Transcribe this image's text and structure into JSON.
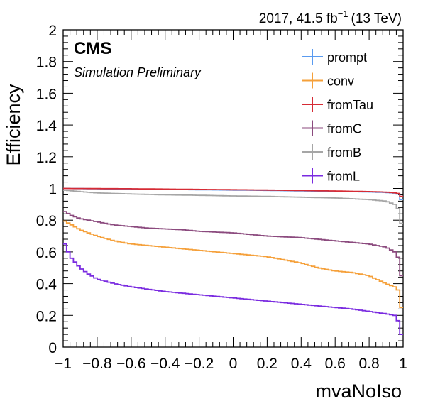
{
  "chart_data": {
    "type": "line",
    "header": {
      "experiment": "CMS",
      "subtitle": "Simulation Preliminary",
      "lumi_year": "2017, 41.5 fb",
      "lumi_exp": "−1",
      "lumi_energy": "(13 TeV)"
    },
    "xlabel": "mvaNoIso",
    "ylabel": "Efficiency",
    "xlim": [
      -1,
      1
    ],
    "ylim": [
      0,
      2
    ],
    "x_ticks": [
      "−1",
      "−0.8",
      "−0.6",
      "−0.4",
      "−0.2",
      "0",
      "0.2",
      "0.4",
      "0.6",
      "0.8",
      "1"
    ],
    "y_ticks": [
      "0",
      "0.2",
      "0.4",
      "0.6",
      "0.8",
      "1",
      "1.2",
      "1.4",
      "1.6",
      "1.8",
      "2"
    ],
    "legend_position": "top-right",
    "series": [
      {
        "name": "prompt",
        "color": "#5a9bf0",
        "x": [
          -1.0,
          -0.8,
          -0.6,
          -0.4,
          -0.2,
          0.0,
          0.2,
          0.4,
          0.6,
          0.8,
          0.9,
          0.96,
          0.98,
          0.99,
          1.0
        ],
        "y": [
          1.0,
          0.998,
          0.996,
          0.994,
          0.992,
          0.99,
          0.988,
          0.985,
          0.982,
          0.978,
          0.975,
          0.97,
          0.96,
          0.93,
          0.85
        ]
      },
      {
        "name": "conv",
        "color": "#f5a03a",
        "x": [
          -1.0,
          -0.95,
          -0.9,
          -0.8,
          -0.7,
          -0.6,
          -0.5,
          -0.4,
          -0.3,
          -0.2,
          -0.1,
          0.0,
          0.1,
          0.2,
          0.3,
          0.4,
          0.5,
          0.6,
          0.7,
          0.8,
          0.9,
          0.95,
          0.98,
          0.99,
          1.0
        ],
        "y": [
          0.8,
          0.77,
          0.74,
          0.7,
          0.67,
          0.65,
          0.64,
          0.63,
          0.62,
          0.61,
          0.6,
          0.59,
          0.58,
          0.57,
          0.55,
          0.53,
          0.5,
          0.48,
          0.47,
          0.45,
          0.4,
          0.38,
          0.35,
          0.25,
          0.18
        ]
      },
      {
        "name": "fromTau",
        "color": "#d62b35",
        "x": [
          -1.0,
          -0.8,
          -0.6,
          -0.4,
          -0.2,
          0.0,
          0.2,
          0.4,
          0.6,
          0.8,
          0.9,
          0.96,
          0.98,
          0.99,
          1.0
        ],
        "y": [
          1.0,
          0.999,
          0.998,
          0.996,
          0.994,
          0.992,
          0.99,
          0.987,
          0.984,
          0.98,
          0.977,
          0.972,
          0.965,
          0.95,
          0.9
        ]
      },
      {
        "name": "fromC",
        "color": "#8b4a7e",
        "x": [
          -1.0,
          -0.95,
          -0.9,
          -0.8,
          -0.7,
          -0.6,
          -0.5,
          -0.4,
          -0.3,
          -0.2,
          -0.1,
          0.0,
          0.1,
          0.2,
          0.3,
          0.4,
          0.5,
          0.6,
          0.7,
          0.8,
          0.9,
          0.95,
          0.98,
          0.99,
          1.0
        ],
        "y": [
          0.86,
          0.83,
          0.81,
          0.79,
          0.77,
          0.76,
          0.75,
          0.745,
          0.74,
          0.73,
          0.725,
          0.72,
          0.71,
          0.7,
          0.695,
          0.69,
          0.68,
          0.67,
          0.66,
          0.65,
          0.63,
          0.6,
          0.55,
          0.45,
          0.32
        ]
      },
      {
        "name": "fromB",
        "color": "#a6a6a6",
        "x": [
          -1.0,
          -0.9,
          -0.8,
          -0.6,
          -0.4,
          -0.2,
          0.0,
          0.2,
          0.4,
          0.6,
          0.8,
          0.9,
          0.95,
          0.98,
          0.99,
          1.0
        ],
        "y": [
          0.99,
          0.98,
          0.972,
          0.965,
          0.96,
          0.957,
          0.953,
          0.95,
          0.945,
          0.94,
          0.93,
          0.92,
          0.9,
          0.86,
          0.78,
          0.6
        ]
      },
      {
        "name": "fromL",
        "color": "#7a2be0",
        "x": [
          -1.0,
          -0.98,
          -0.95,
          -0.9,
          -0.85,
          -0.8,
          -0.7,
          -0.6,
          -0.5,
          -0.4,
          -0.3,
          -0.2,
          -0.1,
          0.0,
          0.1,
          0.2,
          0.3,
          0.4,
          0.5,
          0.6,
          0.7,
          0.8,
          0.9,
          0.95,
          0.98,
          0.99,
          1.0
        ],
        "y": [
          0.68,
          0.62,
          0.56,
          0.5,
          0.46,
          0.43,
          0.4,
          0.38,
          0.365,
          0.35,
          0.34,
          0.33,
          0.32,
          0.31,
          0.3,
          0.29,
          0.28,
          0.27,
          0.26,
          0.25,
          0.24,
          0.225,
          0.21,
          0.2,
          0.15,
          0.08,
          0.0
        ]
      }
    ]
  }
}
